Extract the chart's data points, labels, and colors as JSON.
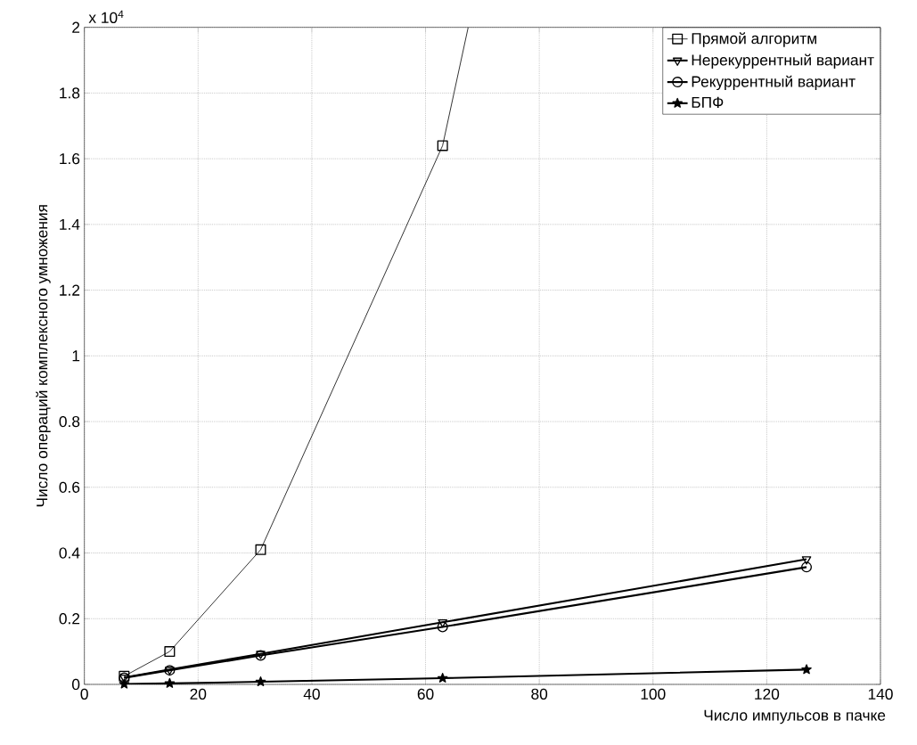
{
  "chart_data": {
    "type": "line",
    "xlabel": "Число импульсов в пачке",
    "ylabel": "Число операций комплексного умножения",
    "annotations": [
      "x 10$^{4}$"
    ],
    "x": [
      7,
      15,
      31,
      63,
      127
    ],
    "series": [
      {
        "name": "Прямой алгоритм",
        "color": "#000000",
        "marker": "square",
        "x": [
          7,
          15,
          31,
          63,
          67.5
        ],
        "values": [
          0.025,
          0.1,
          0.41,
          1.64,
          2.0
        ]
      },
      {
        "name": "Нерекуррентный вариант",
        "color": "#000000",
        "marker": "triangle",
        "values": [
          0.021,
          0.045,
          0.093,
          0.189,
          0.381
        ]
      },
      {
        "name": "Рекуррентный вариант",
        "color": "#000000",
        "marker": "circle",
        "values": [
          0.02,
          0.043,
          0.088,
          0.175,
          0.357
        ]
      },
      {
        "name": "БПФ",
        "color": "#000000",
        "marker": "star",
        "values": [
          0.001,
          0.003,
          0.008,
          0.019,
          0.045
        ]
      }
    ],
    "xlim": [
      0,
      140
    ],
    "xticks": [
      0,
      20,
      40,
      60,
      80,
      100,
      120,
      140
    ],
    "ylim": [
      0,
      2
    ],
    "yticks": [
      0,
      0.2,
      0.4,
      0.6,
      0.8,
      1,
      1.2,
      1.4,
      1.6,
      1.8,
      2
    ],
    "grid": true,
    "legend": "top right",
    "line_style": "solid"
  }
}
